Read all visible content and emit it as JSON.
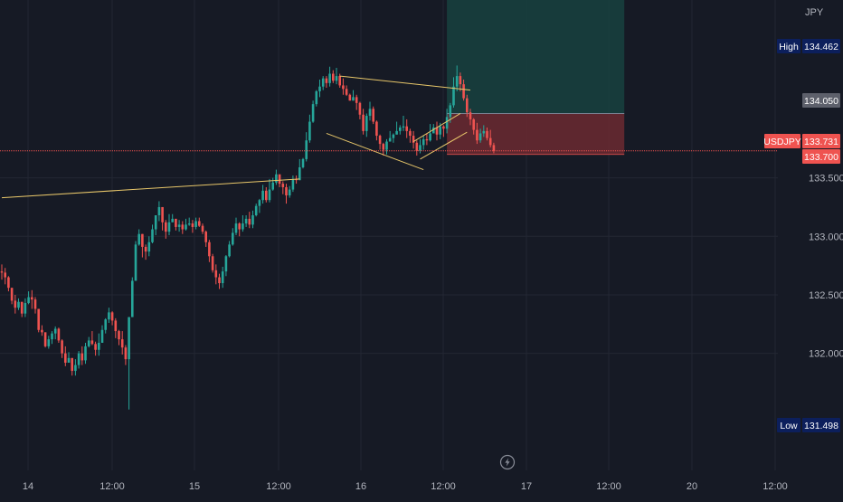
{
  "symbol": "USDJPY",
  "currency": "JPY",
  "colors": {
    "background": "#161a25",
    "grid": "#232733",
    "up": "#26a69a",
    "down": "#ef5350",
    "trendline": "#e8c76a",
    "target_zone": "#18423f",
    "stop_zone": "#6b2a31",
    "label_navy": "#0c1f5c"
  },
  "price_tags": {
    "high": {
      "label": "High",
      "value": "134.462"
    },
    "low": {
      "label": "Low",
      "value": "131.498"
    },
    "current": {
      "label": "USDJPY",
      "value": "133.731"
    },
    "entry": {
      "value": "133.700"
    },
    "target": {
      "value": "134.050"
    }
  },
  "icons": {
    "replay": "lightning-icon"
  },
  "chart_data": {
    "type": "candlestick",
    "title": "",
    "xlabel": "",
    "ylabel": "",
    "y_axis_position": "right",
    "ylim": [
      131.0,
      135.02
    ],
    "y_ticks": [
      "132.000",
      "132.500",
      "133.000",
      "133.500"
    ],
    "x_ticks": [
      "14",
      "12:00",
      "15",
      "12:00",
      "16",
      "12:00",
      "17",
      "12:00",
      "20",
      "12:00"
    ],
    "grid": true,
    "candles": [
      [
        132.7,
        132.69,
        132.76,
        132.63
      ],
      [
        132.69,
        132.65,
        132.73,
        132.59
      ],
      [
        132.65,
        132.56,
        132.66,
        132.53
      ],
      [
        132.56,
        132.45,
        132.56,
        132.42
      ],
      [
        132.45,
        132.39,
        132.5,
        132.34
      ],
      [
        132.39,
        132.44,
        132.47,
        132.37
      ],
      [
        132.44,
        132.34,
        132.44,
        132.31
      ],
      [
        132.34,
        132.43,
        132.47,
        132.31
      ],
      [
        132.43,
        132.48,
        132.53,
        132.42
      ],
      [
        132.48,
        132.46,
        132.54,
        132.38
      ],
      [
        132.46,
        132.38,
        132.48,
        132.34
      ],
      [
        132.38,
        132.2,
        132.38,
        132.18
      ],
      [
        132.2,
        132.18,
        132.24,
        132.15
      ],
      [
        132.18,
        132.06,
        132.18,
        132.05
      ],
      [
        132.06,
        132.12,
        132.15,
        132.04
      ],
      [
        132.12,
        132.17,
        132.19,
        132.08
      ],
      [
        132.17,
        132.21,
        132.23,
        132.12
      ],
      [
        132.21,
        132.11,
        132.22,
        132.09
      ],
      [
        132.11,
        132.0,
        132.12,
        131.96
      ],
      [
        132.0,
        131.92,
        132.06,
        131.89
      ],
      [
        131.92,
        131.96,
        132.01,
        131.92
      ],
      [
        131.96,
        131.85,
        131.96,
        131.81
      ],
      [
        131.85,
        131.9,
        131.95,
        131.81
      ],
      [
        131.9,
        132.0,
        132.02,
        131.87
      ],
      [
        132.0,
        131.94,
        132.06,
        131.9
      ],
      [
        131.94,
        132.06,
        132.09,
        131.91
      ],
      [
        132.06,
        132.11,
        132.14,
        132.05
      ],
      [
        132.11,
        132.08,
        132.19,
        132.07
      ],
      [
        132.08,
        132.03,
        132.1,
        131.98
      ],
      [
        132.03,
        132.09,
        132.17,
        131.98
      ],
      [
        132.09,
        132.2,
        132.24,
        132.09
      ],
      [
        132.2,
        132.29,
        132.3,
        132.17
      ],
      [
        132.29,
        132.35,
        132.39,
        132.26
      ],
      [
        132.35,
        132.28,
        132.36,
        132.24
      ],
      [
        132.28,
        132.19,
        132.3,
        132.13
      ],
      [
        132.19,
        132.12,
        132.2,
        132.07
      ],
      [
        132.12,
        132.05,
        132.19,
        131.99
      ],
      [
        132.05,
        131.95,
        132.07,
        131.9
      ],
      [
        131.95,
        132.31,
        132.31,
        131.52
      ],
      [
        132.31,
        132.62,
        132.65,
        132.31
      ],
      [
        132.62,
        132.93,
        132.96,
        132.62
      ],
      [
        132.93,
        133.02,
        133.06,
        132.92
      ],
      [
        133.02,
        132.91,
        133.02,
        132.82
      ],
      [
        132.91,
        132.87,
        132.93,
        132.8
      ],
      [
        132.87,
        132.95,
        133.0,
        132.83
      ],
      [
        132.95,
        133.06,
        133.1,
        132.94
      ],
      [
        133.06,
        133.18,
        133.18,
        133.01
      ],
      [
        133.18,
        133.25,
        133.3,
        133.13
      ],
      [
        133.25,
        133.12,
        133.25,
        133.05
      ],
      [
        133.12,
        133.04,
        133.14,
        132.98
      ],
      [
        133.04,
        133.12,
        133.19,
        133.01
      ],
      [
        133.12,
        133.15,
        133.19,
        133.13
      ],
      [
        133.15,
        133.08,
        133.15,
        133.05
      ],
      [
        133.08,
        133.1,
        133.14,
        133.04
      ],
      [
        133.1,
        133.06,
        133.13,
        133.02
      ],
      [
        133.06,
        133.1,
        133.15,
        133.05
      ],
      [
        133.1,
        133.11,
        133.16,
        133.09
      ],
      [
        133.11,
        133.08,
        133.14,
        133.03
      ],
      [
        133.08,
        133.13,
        133.16,
        133.06
      ],
      [
        133.13,
        133.09,
        133.16,
        133.08
      ],
      [
        133.09,
        133.04,
        133.11,
        133.02
      ],
      [
        133.04,
        132.95,
        133.05,
        132.91
      ],
      [
        132.95,
        132.83,
        132.97,
        132.78
      ],
      [
        132.83,
        132.71,
        132.85,
        132.69
      ],
      [
        132.71,
        132.65,
        132.76,
        132.59
      ],
      [
        132.65,
        132.6,
        132.68,
        132.55
      ],
      [
        132.6,
        132.7,
        132.74,
        132.56
      ],
      [
        132.7,
        132.83,
        132.84,
        132.66
      ],
      [
        132.83,
        132.93,
        132.96,
        132.82
      ],
      [
        132.93,
        133.03,
        133.07,
        132.92
      ],
      [
        133.03,
        133.11,
        133.16,
        133.01
      ],
      [
        133.11,
        133.06,
        133.12,
        133.0
      ],
      [
        133.06,
        133.11,
        133.18,
        133.04
      ],
      [
        133.11,
        133.15,
        133.18,
        133.08
      ],
      [
        133.15,
        133.1,
        133.21,
        133.07
      ],
      [
        133.1,
        133.18,
        133.22,
        133.07
      ],
      [
        133.18,
        133.26,
        133.28,
        133.17
      ],
      [
        133.26,
        133.31,
        133.32,
        133.2
      ],
      [
        133.31,
        133.39,
        133.44,
        133.28
      ],
      [
        133.39,
        133.31,
        133.42,
        133.29
      ],
      [
        133.31,
        133.4,
        133.49,
        133.29
      ],
      [
        133.4,
        133.46,
        133.5,
        133.39
      ],
      [
        133.46,
        133.53,
        133.57,
        133.44
      ],
      [
        133.53,
        133.45,
        133.53,
        133.42
      ],
      [
        133.45,
        133.42,
        133.47,
        133.36
      ],
      [
        133.42,
        133.35,
        133.45,
        133.28
      ],
      [
        133.35,
        133.4,
        133.43,
        133.33
      ],
      [
        133.4,
        133.49,
        133.52,
        133.38
      ],
      [
        133.49,
        133.48,
        133.52,
        133.45
      ],
      [
        133.48,
        133.59,
        133.66,
        133.48
      ],
      [
        133.59,
        133.66,
        133.67,
        133.58
      ],
      [
        133.66,
        133.82,
        133.89,
        133.64
      ],
      [
        133.82,
        133.98,
        134.04,
        133.8
      ],
      [
        133.98,
        134.13,
        134.16,
        133.97
      ],
      [
        134.13,
        134.24,
        134.25,
        134.11
      ],
      [
        134.24,
        134.28,
        134.34,
        134.19
      ],
      [
        134.28,
        134.35,
        134.37,
        134.25
      ],
      [
        134.35,
        134.31,
        134.37,
        134.27
      ],
      [
        134.31,
        134.39,
        134.45,
        134.28
      ],
      [
        134.39,
        134.33,
        134.42,
        134.31
      ],
      [
        134.33,
        134.37,
        134.44,
        134.3
      ],
      [
        134.37,
        134.29,
        134.39,
        134.27
      ],
      [
        134.29,
        134.26,
        134.35,
        134.21
      ],
      [
        134.26,
        134.21,
        134.29,
        134.2
      ],
      [
        134.21,
        134.16,
        134.22,
        134.16
      ],
      [
        134.16,
        134.19,
        134.25,
        134.16
      ],
      [
        134.19,
        134.14,
        134.21,
        134.08
      ],
      [
        134.14,
        134.04,
        134.15,
        134.0
      ],
      [
        134.04,
        133.9,
        134.09,
        133.87
      ],
      [
        133.9,
        134.03,
        134.05,
        133.85
      ],
      [
        134.03,
        134.09,
        134.15,
        133.99
      ],
      [
        134.09,
        133.98,
        134.11,
        133.96
      ],
      [
        133.98,
        133.86,
        133.99,
        133.82
      ],
      [
        133.86,
        133.79,
        133.87,
        133.74
      ],
      [
        133.79,
        133.74,
        133.8,
        133.69
      ],
      [
        133.74,
        133.81,
        133.83,
        133.7
      ],
      [
        133.81,
        133.84,
        133.9,
        133.81
      ],
      [
        133.84,
        133.87,
        133.88,
        133.8
      ],
      [
        133.87,
        133.9,
        133.98,
        133.87
      ],
      [
        133.9,
        133.93,
        133.95,
        133.87
      ],
      [
        133.93,
        133.94,
        134.03,
        133.9
      ],
      [
        133.94,
        133.9,
        134.0,
        133.84
      ],
      [
        133.9,
        133.86,
        133.92,
        133.8
      ],
      [
        133.86,
        133.8,
        133.9,
        133.75
      ],
      [
        133.8,
        133.73,
        133.82,
        133.69
      ],
      [
        133.73,
        133.78,
        133.83,
        133.71
      ],
      [
        133.78,
        133.83,
        133.86,
        133.74
      ],
      [
        133.83,
        133.82,
        133.88,
        133.78
      ],
      [
        133.82,
        133.88,
        133.96,
        133.81
      ],
      [
        133.88,
        133.93,
        133.96,
        133.91
      ],
      [
        133.93,
        133.87,
        133.98,
        133.82
      ],
      [
        133.87,
        133.94,
        133.97,
        133.83
      ],
      [
        133.94,
        133.92,
        133.95,
        133.85
      ],
      [
        133.92,
        134.02,
        134.09,
        133.88
      ],
      [
        134.02,
        134.12,
        134.14,
        133.97
      ],
      [
        134.12,
        134.28,
        134.36,
        134.1
      ],
      [
        134.28,
        134.37,
        134.46,
        134.24
      ],
      [
        134.37,
        134.3,
        134.4,
        134.24
      ],
      [
        134.3,
        134.18,
        134.34,
        134.16
      ],
      [
        134.18,
        134.06,
        134.21,
        134.02
      ],
      [
        134.06,
        134.0,
        134.09,
        133.95
      ],
      [
        134.0,
        133.91,
        134.01,
        133.87
      ],
      [
        133.91,
        133.82,
        133.97,
        133.79
      ],
      [
        133.82,
        133.88,
        133.92,
        133.8
      ],
      [
        133.88,
        133.9,
        133.95,
        133.85
      ],
      [
        133.9,
        133.84,
        133.93,
        133.82
      ],
      [
        133.84,
        133.78,
        133.91,
        133.76
      ],
      [
        133.78,
        133.73,
        133.8,
        133.71
      ]
    ],
    "trendlines": [
      {
        "from": [
          0,
          133.33
        ],
        "to": [
          89,
          133.49
        ]
      },
      {
        "from": [
          101,
          134.37
        ],
        "to": [
          140,
          134.25
        ]
      },
      {
        "from": [
          97,
          133.88
        ],
        "to": [
          126,
          133.57
        ]
      },
      {
        "from": [
          123,
          133.81
        ],
        "to": [
          137,
          134.05
        ]
      },
      {
        "from": [
          125,
          133.66
        ],
        "to": [
          139,
          133.89
        ]
      }
    ],
    "trade_zones": [
      {
        "name": "target",
        "from_index": 133,
        "to_index": 186,
        "top": 135.02,
        "bottom": 134.05
      },
      {
        "name": "stop",
        "from_index": 133,
        "to_index": 186,
        "top": 134.05,
        "bottom": 133.7
      }
    ],
    "current_price": 133.731,
    "extremes": {
      "high": 134.462,
      "low": 131.498
    }
  }
}
